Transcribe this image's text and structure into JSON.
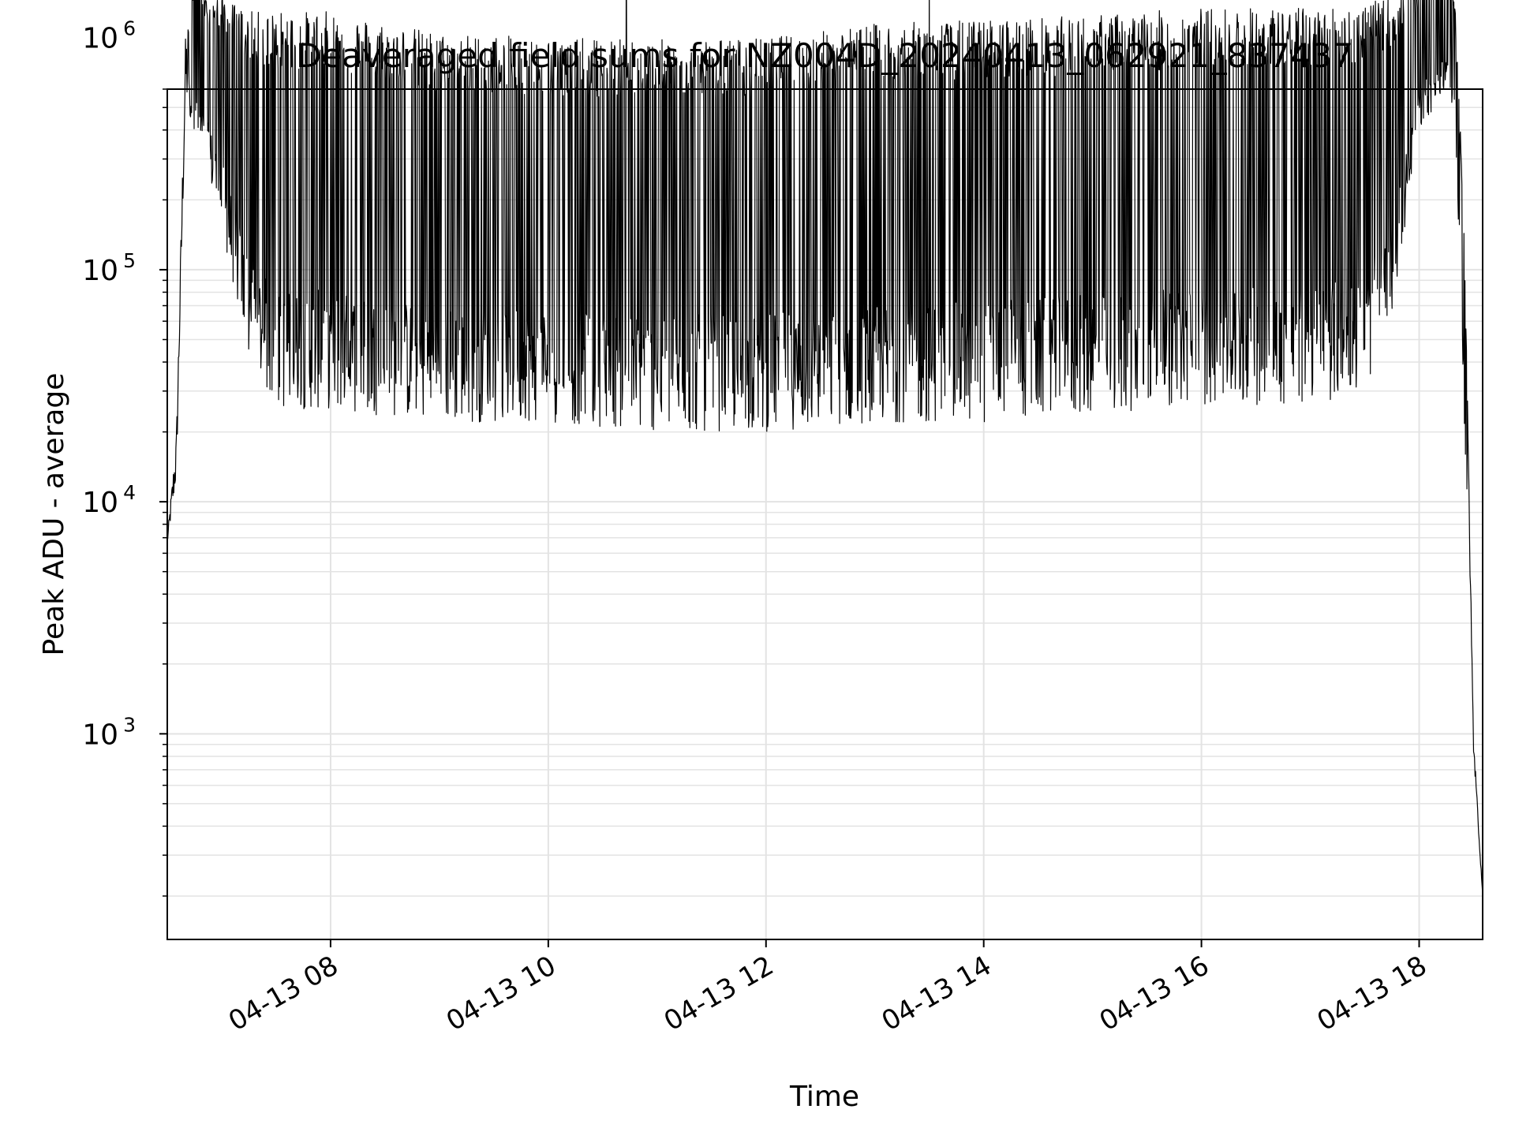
{
  "chart_data": {
    "type": "line",
    "title": "Deaveraged field sums for NZ004D_20240413_062921_837437",
    "xlabel": "Time",
    "ylabel": "Peak ADU - average",
    "y_scale": "log",
    "ylim": [
      130,
      600000
    ],
    "xlim": [
      "2024-04-13 06:30",
      "2024-04-13 18:35"
    ],
    "x_ticks": [
      {
        "x": "2024-04-13 08:00",
        "label": "04-13 08"
      },
      {
        "x": "2024-04-13 10:00",
        "label": "04-13 10"
      },
      {
        "x": "2024-04-13 12:00",
        "label": "04-13 12"
      },
      {
        "x": "2024-04-13 14:00",
        "label": "04-13 14"
      },
      {
        "x": "2024-04-13 16:00",
        "label": "04-13 16"
      },
      {
        "x": "2024-04-13 18:00",
        "label": "04-13 18"
      }
    ],
    "y_ticks": [
      {
        "y": 1000,
        "base": "10",
        "exp": "3"
      },
      {
        "y": 10000,
        "base": "10",
        "exp": "4"
      },
      {
        "y": 100000,
        "base": "10",
        "exp": "5"
      },
      {
        "y": 1000000,
        "base": "10",
        "exp": "6"
      }
    ],
    "grid": true,
    "line_color": "#000000",
    "envelope": {
      "description_units": "Peak ADU - average",
      "x": [
        "2024-04-13 06:30",
        "2024-04-13 06:35",
        "2024-04-13 06:40",
        "2024-04-13 06:45",
        "2024-04-13 06:50",
        "2024-04-13 07:00",
        "2024-04-13 07:15",
        "2024-04-13 07:30",
        "2024-04-13 08:00",
        "2024-04-13 09:00",
        "2024-04-13 10:00",
        "2024-04-13 11:00",
        "2024-04-13 12:00",
        "2024-04-13 13:00",
        "2024-04-13 14:00",
        "2024-04-13 15:00",
        "2024-04-13 16:00",
        "2024-04-13 17:00",
        "2024-04-13 17:30",
        "2024-04-13 17:45",
        "2024-04-13 18:00",
        "2024-04-13 18:15",
        "2024-04-13 18:20",
        "2024-04-13 18:25",
        "2024-04-13 18:30",
        "2024-04-13 18:35"
      ],
      "upper": [
        7000,
        20000,
        1000000,
        2000000,
        1500000,
        1500000,
        1300000,
        1300000,
        1300000,
        1050000,
        1000000,
        980000,
        1000000,
        1150000,
        1200000,
        1250000,
        1350000,
        1350000,
        1400000,
        1500000,
        1650000,
        2200000,
        1300000,
        150000,
        1000,
        200
      ],
      "lower": [
        6500,
        12000,
        500000,
        400000,
        300000,
        150000,
        40000,
        25000,
        25000,
        22000,
        22000,
        20000,
        20000,
        22000,
        22000,
        24000,
        26000,
        26000,
        30000,
        60000,
        400000,
        600000,
        400000,
        20000,
        800,
        200
      ]
    },
    "spikes": [
      {
        "x": "2024-04-13 10:43",
        "y": 3500000
      },
      {
        "x": "2024-04-13 13:30",
        "y": 2100000
      },
      {
        "x": "2024-04-13 06:46",
        "y": 2700000
      },
      {
        "x": "2024-04-13 18:17",
        "y": 2400000
      }
    ]
  }
}
